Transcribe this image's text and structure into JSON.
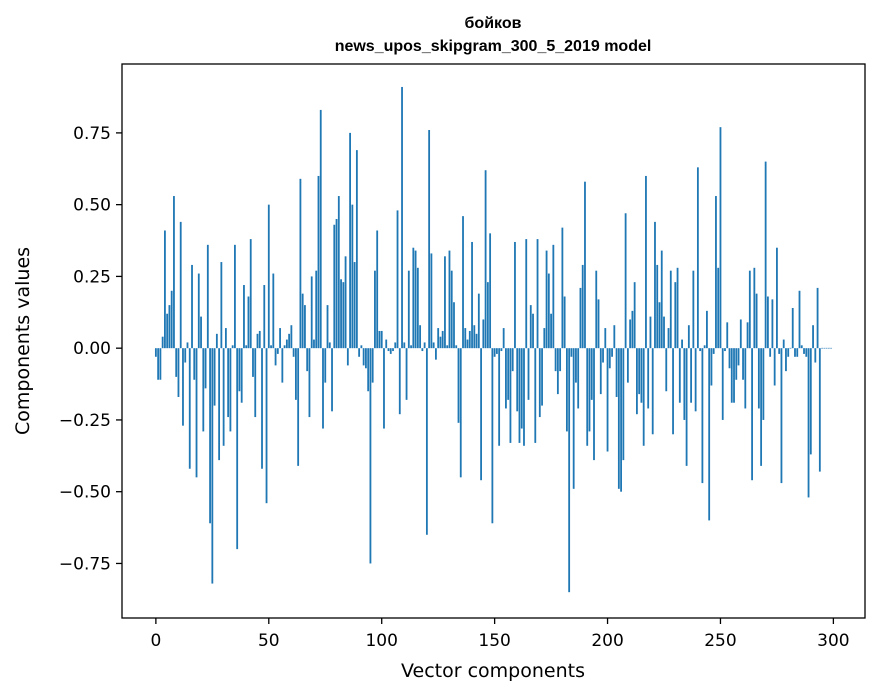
{
  "chart_data": {
    "type": "bar",
    "title": "бойков",
    "subtitle": "news_upos_skipgram_300_5_2019 model",
    "xlabel": "Vector components",
    "ylabel": "Components values",
    "xlim": [
      -15,
      314
    ],
    "ylim": [
      -0.94,
      0.99
    ],
    "xticks": [
      0,
      50,
      100,
      150,
      200,
      250,
      300
    ],
    "xtick_labels": [
      "0",
      "50",
      "100",
      "150",
      "200",
      "250",
      "300"
    ],
    "yticks": [
      -0.75,
      -0.5,
      -0.25,
      0.0,
      0.25,
      0.5,
      0.75
    ],
    "ytick_labels": [
      "−0.75",
      "−0.50",
      "−0.25",
      "0.00",
      "0.25",
      "0.50",
      "0.75"
    ],
    "color": "#1f77b4",
    "values": [
      -0.03,
      -0.11,
      -0.11,
      0.04,
      0.41,
      0.12,
      0.15,
      0.2,
      0.53,
      -0.1,
      -0.17,
      0.44,
      -0.27,
      -0.05,
      0.02,
      -0.42,
      0.29,
      -0.11,
      -0.45,
      0.26,
      0.11,
      -0.29,
      -0.14,
      0.36,
      -0.61,
      -0.82,
      -0.2,
      0.05,
      -0.39,
      0.3,
      -0.34,
      0.07,
      -0.24,
      -0.29,
      0.01,
      0.36,
      -0.7,
      -0.15,
      -0.19,
      0.22,
      0.01,
      0.18,
      0.38,
      -0.1,
      -0.24,
      0.05,
      0.06,
      -0.42,
      0.22,
      -0.54,
      0.5,
      0.01,
      0.26,
      -0.06,
      -0.02,
      0.07,
      -0.12,
      0.01,
      0.03,
      0.05,
      0.08,
      -0.03,
      -0.18,
      -0.41,
      0.59,
      0.19,
      0.15,
      -0.08,
      -0.24,
      0.25,
      0.03,
      0.27,
      0.6,
      0.83,
      -0.28,
      -0.12,
      0.15,
      0.02,
      -0.22,
      0.43,
      0.45,
      0.53,
      0.24,
      0.23,
      0.32,
      -0.06,
      0.75,
      0.5,
      0.3,
      0.69,
      -0.03,
      0.01,
      -0.06,
      -0.07,
      -0.15,
      -0.75,
      -0.12,
      0.27,
      0.41,
      0.06,
      0.06,
      -0.28,
      0.03,
      -0.01,
      -0.02,
      -0.01,
      0.02,
      0.48,
      -0.23,
      0.91,
      0.02,
      -0.18,
      0.27,
      0.01,
      0.35,
      0.34,
      0.28,
      0.08,
      -0.01,
      0.02,
      -0.65,
      0.76,
      0.33,
      0.02,
      -0.04,
      0.07,
      0.04,
      0.06,
      0.32,
      0.01,
      0.34,
      0.27,
      0.16,
      0.01,
      -0.26,
      -0.45,
      0.46,
      0.07,
      0.03,
      0.06,
      0.37,
      0.08,
      0.05,
      0.19,
      -0.46,
      0.1,
      0.62,
      0.23,
      0.4,
      -0.61,
      -0.03,
      -0.02,
      -0.34,
      -0.01,
      0.07,
      -0.21,
      -0.18,
      -0.33,
      -0.08,
      0.37,
      -0.22,
      -0.33,
      -0.28,
      -0.34,
      0.38,
      -0.18,
      0.15,
      0.12,
      -0.33,
      0.38,
      -0.24,
      -0.2,
      0.07,
      0.34,
      0.26,
      0.12,
      0.36,
      -0.08,
      -0.16,
      -0.08,
      0.42,
      0.18,
      -0.29,
      -0.85,
      -0.03,
      -0.49,
      -0.12,
      -0.21,
      0.21,
      0.29,
      0.58,
      -0.34,
      -0.29,
      -0.18,
      -0.39,
      0.27,
      0.17,
      -0.16,
      -0.05,
      0.07,
      -0.36,
      -0.07,
      -0.03,
      0.08,
      -0.17,
      -0.49,
      -0.5,
      -0.39,
      0.47,
      -0.12,
      0.1,
      0.13,
      0.23,
      -0.23,
      -0.16,
      -0.19,
      -0.34,
      0.6,
      -0.21,
      0.11,
      -0.3,
      0.44,
      0.29,
      0.16,
      0.34,
      0.11,
      -0.15,
      0.07,
      0.27,
      -0.3,
      0.23,
      0.28,
      -0.19,
      0.03,
      -0.25,
      -0.41,
      0.08,
      -0.19,
      0.27,
      -0.22,
      0.63,
      -0.01,
      -0.47,
      0.01,
      0.13,
      -0.6,
      -0.13,
      -0.02,
      0.53,
      0.28,
      0.77,
      -0.25,
      -0.01,
      0.09,
      -0.07,
      -0.19,
      -0.19,
      -0.11,
      -0.06,
      0.1,
      -0.11,
      -0.21,
      0.09,
      0.27,
      -0.46,
      0.28,
      0.19,
      -0.21,
      -0.41,
      -0.25,
      0.65,
      0.18,
      -0.03,
      0.17,
      -0.13,
      0.35,
      -0.02,
      -0.47,
      0.03,
      -0.08,
      -0.03,
      0.0,
      0.14,
      -0.03,
      -0.03,
      0.2,
      0.01,
      -0.02,
      -0.03,
      -0.52,
      -0.37,
      0.08,
      -0.05,
      0.21,
      -0.43,
      0.0,
      0.0,
      0.0,
      0.0,
      0.0
    ]
  }
}
